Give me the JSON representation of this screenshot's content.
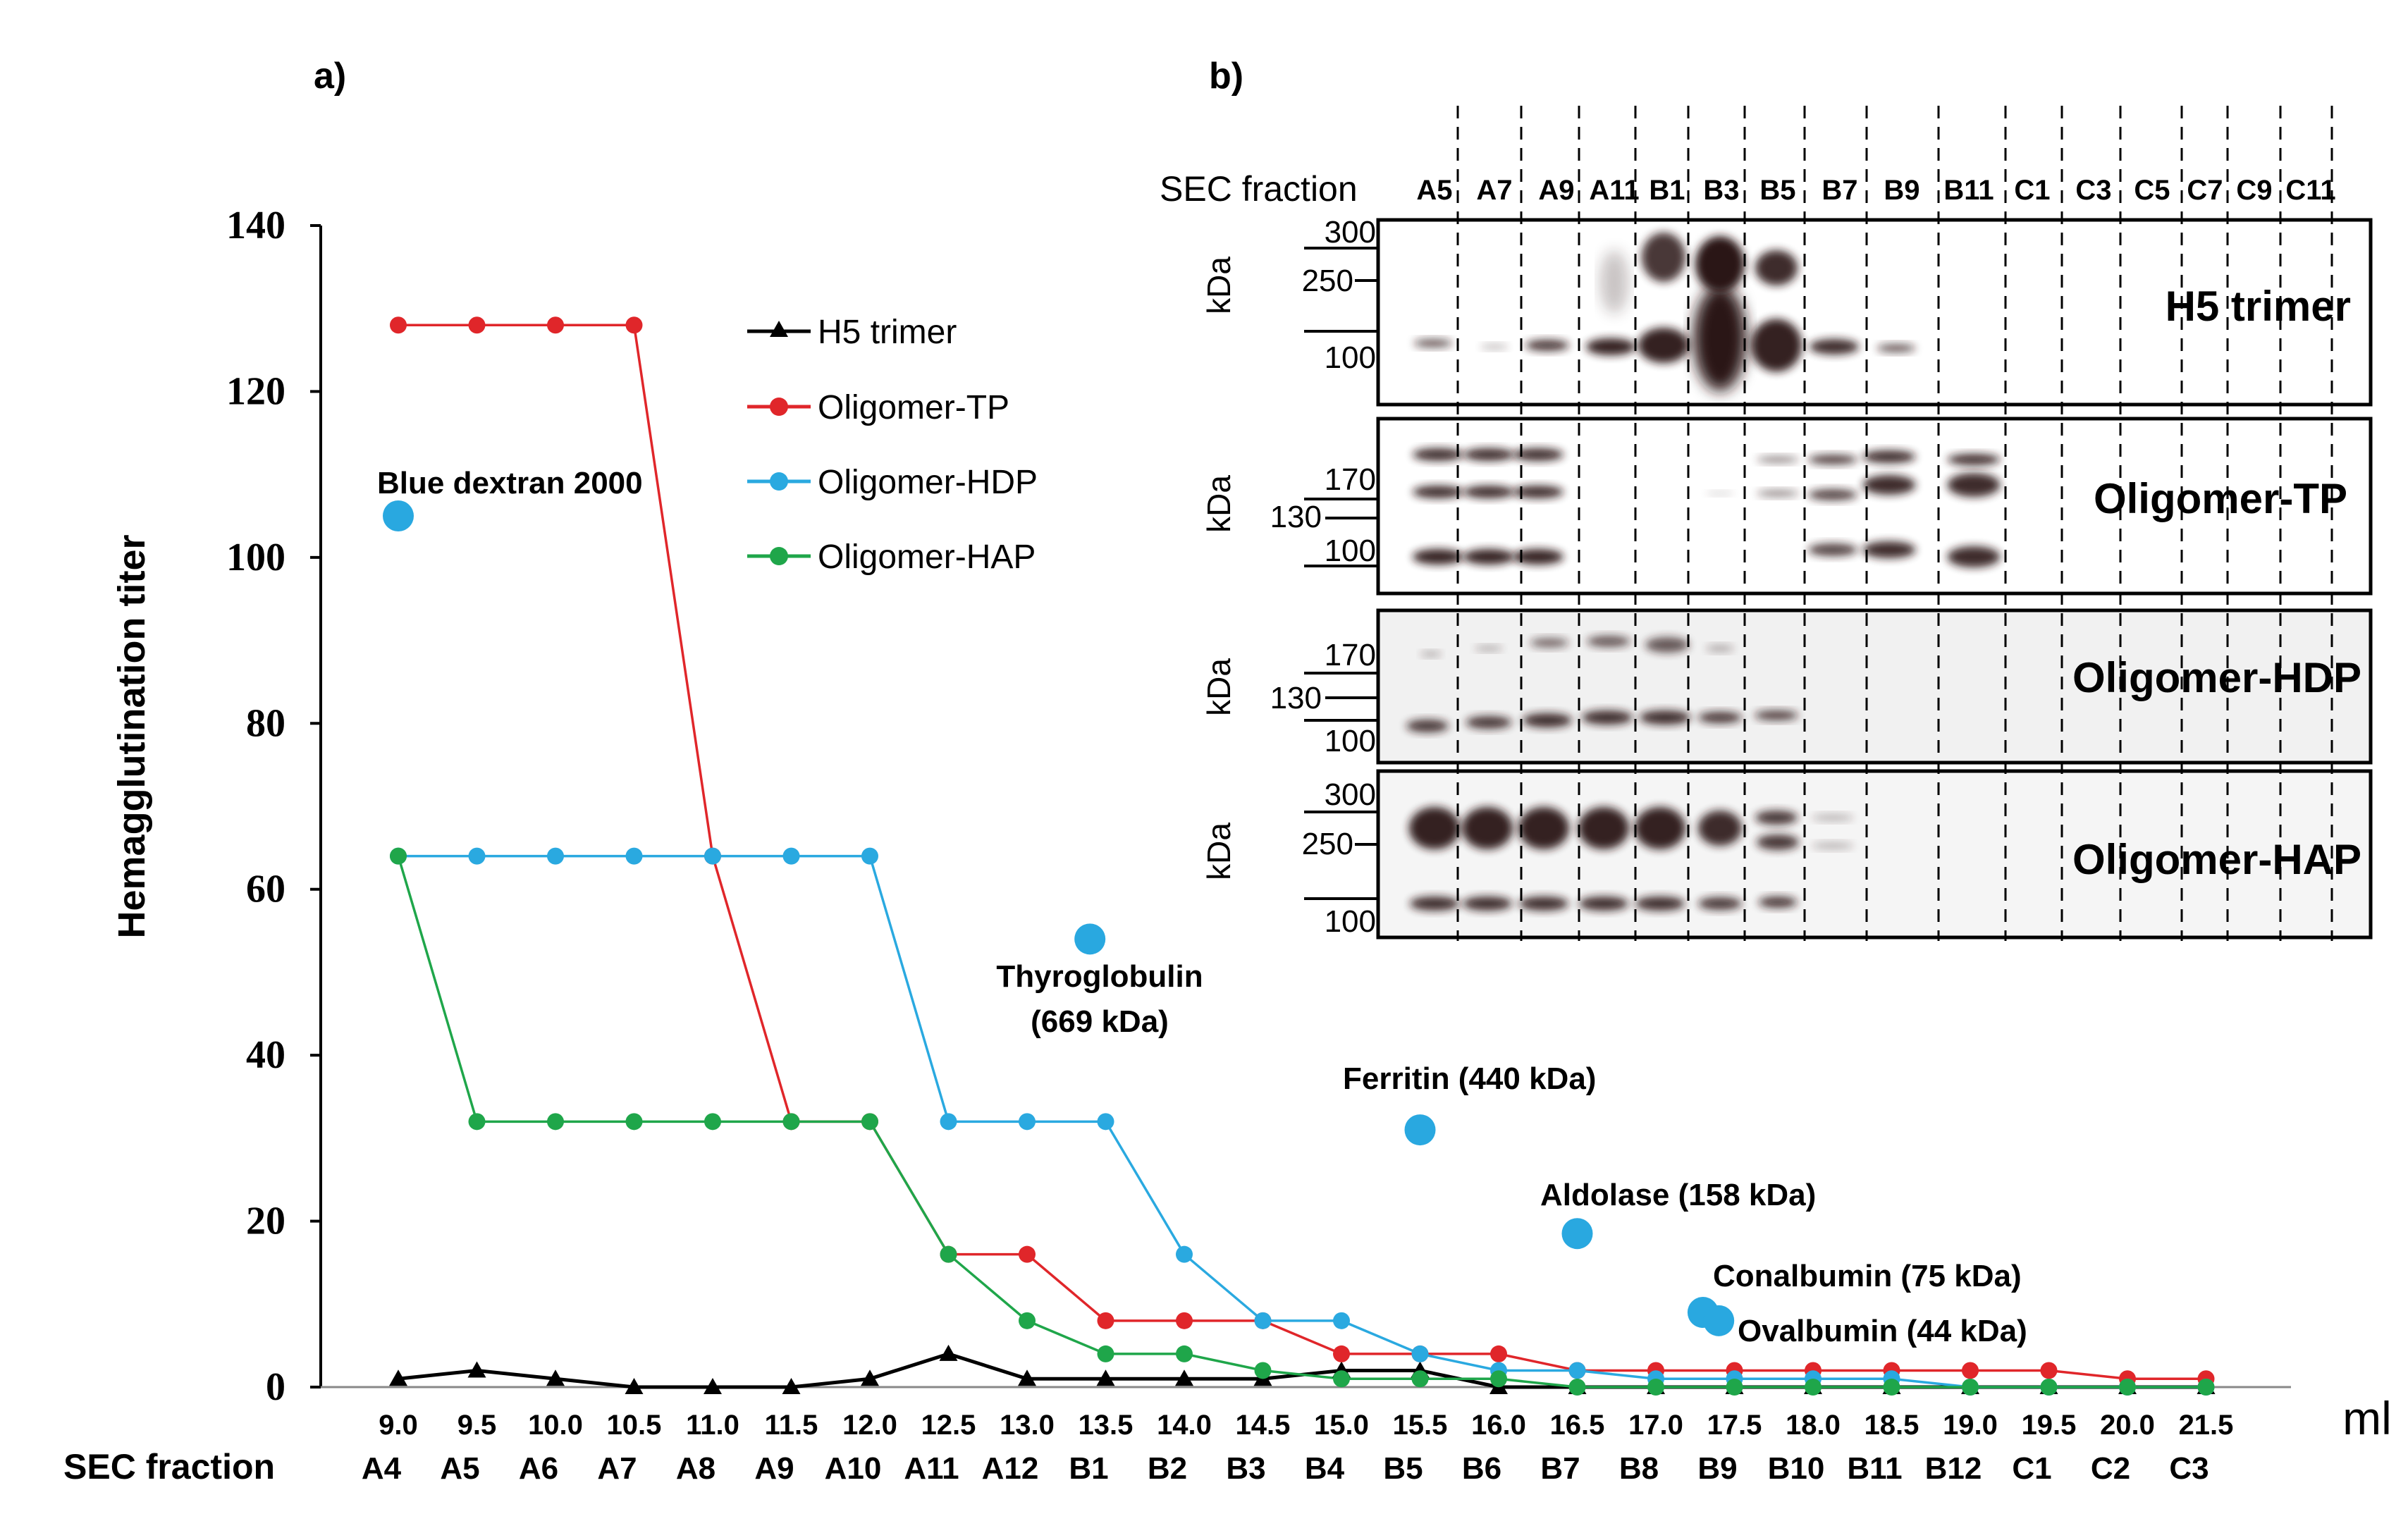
{
  "chart_data": [
    {
      "type": "line",
      "panel_label": "a)",
      "ylabel": "Hemagglutination titer",
      "xlabel": "ml",
      "x_row_label": "SEC fraction",
      "ylim": [
        0,
        140
      ],
      "yticks": [
        "0",
        "20",
        "40",
        "60",
        "80",
        "100",
        "120",
        "140"
      ],
      "x": [
        "9.0",
        "9.5",
        "10.0",
        "10.5",
        "11.0",
        "11.5",
        "12.0",
        "12.5",
        "13.0",
        "13.5",
        "14.0",
        "14.5",
        "15.0",
        "15.5",
        "16.0",
        "16.5",
        "17.0",
        "17.5",
        "18.0",
        "18.5",
        "19.0",
        "19.5",
        "20.0",
        "21.5"
      ],
      "fractions": [
        "A4",
        "A5",
        "A6",
        "A7",
        "A8",
        "A9",
        "A10",
        "A11",
        "A12",
        "B1",
        "B2",
        "B3",
        "B4",
        "B5",
        "B6",
        "B7",
        "B8",
        "B9",
        "B10",
        "B11",
        "B12",
        "C1",
        "C2",
        "C3"
      ],
      "series": [
        {
          "name": "H5 trimer",
          "color": "#000000",
          "marker": "triangle",
          "values": [
            1,
            2,
            1,
            0,
            0,
            0,
            1,
            4,
            1,
            1,
            1,
            1,
            2,
            2,
            0,
            0,
            0,
            0,
            0,
            0,
            0,
            0,
            0,
            0
          ]
        },
        {
          "name": "Oligomer-TP",
          "color": "#e0262a",
          "marker": "circle",
          "values": [
            128,
            128,
            128,
            128,
            64,
            32,
            32,
            16,
            16,
            8,
            8,
            8,
            4,
            4,
            4,
            2,
            2,
            2,
            2,
            2,
            2,
            2,
            1,
            1
          ]
        },
        {
          "name": "Oligomer-HDP",
          "color": "#2aa9e0",
          "marker": "circle",
          "values": [
            64,
            64,
            64,
            64,
            64,
            64,
            64,
            32,
            32,
            32,
            16,
            8,
            8,
            4,
            2,
            2,
            1,
            1,
            1,
            1,
            0,
            0,
            0,
            0
          ]
        },
        {
          "name": "Oligomer-HAP",
          "color": "#1fa64a",
          "marker": "circle",
          "values": [
            64,
            32,
            32,
            32,
            32,
            32,
            32,
            16,
            8,
            4,
            4,
            2,
            1,
            1,
            1,
            0,
            0,
            0,
            0,
            0,
            0,
            0,
            0,
            0
          ]
        }
      ],
      "standards": {
        "color": "#29a8e0",
        "items": [
          {
            "label": "Blue dextran 2000",
            "x": 9.0,
            "y": 105
          },
          {
            "label": "Thyroglobulin",
            "label2": "(669 kDa)",
            "x": 13.4,
            "y": 54
          },
          {
            "label": "Ferritin (440 kDa)",
            "x": 15.5,
            "y": 31
          },
          {
            "label": "Aldolase (158 kDa)",
            "x": 16.5,
            "y": 18.5
          },
          {
            "label": "Conalbumin (75 kDa)",
            "x": 17.3,
            "y": 9
          },
          {
            "label": "Ovalbumin (44 kDa)",
            "x": 17.4,
            "y": 8
          }
        ]
      }
    },
    {
      "type": "western-blot",
      "panel_label": "b)",
      "lane_row_label": "SEC fraction",
      "lanes": [
        "A5",
        "A7",
        "A9",
        "A11",
        "B1",
        "B3",
        "B5",
        "B7",
        "B9",
        "B11",
        "C1",
        "C3",
        "C5",
        "C7",
        "C9",
        "C11"
      ],
      "unit": "kDa",
      "blots": [
        {
          "name": "H5 trimer",
          "markers": [
            "300",
            "250",
            "100"
          ]
        },
        {
          "name": "Oligomer-TP",
          "markers": [
            "170",
            "130",
            "100"
          ]
        },
        {
          "name": "Oligomer-HDP",
          "markers": [
            "170",
            "130",
            "100"
          ]
        },
        {
          "name": "Oligomer-HAP",
          "markers": [
            "300",
            "250",
            "100"
          ]
        }
      ]
    }
  ]
}
